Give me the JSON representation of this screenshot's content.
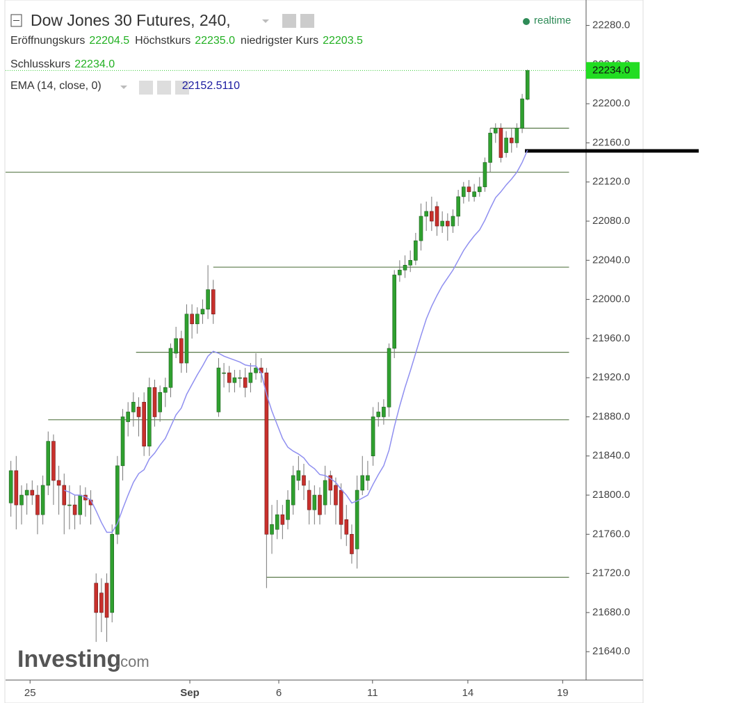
{
  "chart_data": {
    "type": "candlestick",
    "title": "Dow Jones 30 Futures, 240,",
    "status": "realtime",
    "ohlc": [
      {
        "name": "Eröffnungskurs",
        "value": "22204.5"
      },
      {
        "name": "Höchstkurs",
        "value": "22235.0"
      },
      {
        "name": "niedrigster Kurs",
        "value": "22203.5"
      },
      {
        "name": "Schlusskurs",
        "value": "22234.0"
      }
    ],
    "last_price_label": "22234.0",
    "ema_name": "EMA (14, close, 0)",
    "ema_label": "22152.5110",
    "ema_color": "#8f8ff0",
    "logo": [
      "Investing",
      ".com"
    ],
    "up_color": "#2fa02f",
    "down_color": "#c8302c",
    "ylim": [
      21611,
      22306
    ],
    "yticks": [
      {
        "value": 21640,
        "label": "21640.0"
      },
      {
        "value": 21680,
        "label": "21680.0"
      },
      {
        "value": 21720,
        "label": "21720.0"
      },
      {
        "value": 21760,
        "label": "21760.0"
      },
      {
        "value": 21800,
        "label": "21800.0"
      },
      {
        "value": 21840,
        "label": "21840.0"
      },
      {
        "value": 21880,
        "label": "21880.0"
      },
      {
        "value": 21920,
        "label": "21920.0"
      },
      {
        "value": 21960,
        "label": "21960.0"
      },
      {
        "value": 22000,
        "label": "22000.0"
      },
      {
        "value": 22040,
        "label": "22040.0"
      },
      {
        "value": 22080,
        "label": "22080.0"
      },
      {
        "value": 22120,
        "label": "22120.0"
      },
      {
        "value": 22160,
        "label": "22160.0"
      },
      {
        "value": 22200,
        "label": "22200.0"
      },
      {
        "value": 22240,
        "label": "22240.0"
      },
      {
        "value": 22280,
        "label": "22280.0"
      }
    ],
    "xlim": [
      -1,
      108
    ],
    "xticks": [
      {
        "value": 3.6,
        "label": "25"
      },
      {
        "value": 33.6,
        "label": "Sep"
      },
      {
        "value": 50.3,
        "label": "6"
      },
      {
        "value": 67.9,
        "label": "11"
      },
      {
        "value": 85.8,
        "label": "14"
      },
      {
        "value": 103.6,
        "label": "19"
      }
    ],
    "levels": [
      {
        "price": 22175,
        "from": 90,
        "to": 104.8
      },
      {
        "price": 22130,
        "from": -1,
        "to": 104.8
      },
      {
        "price": 22033,
        "from": 38,
        "to": 104.8
      },
      {
        "price": 21946,
        "from": 23.5,
        "to": 104.8
      },
      {
        "price": 21877,
        "from": 7,
        "to": 104.8
      },
      {
        "price": 21716,
        "from": 48,
        "to": 104.8
      }
    ],
    "level_color": "#5a7a4a",
    "x": [
      0,
      1,
      2,
      3,
      4,
      5,
      6,
      7,
      8,
      9,
      10,
      11,
      12,
      13,
      14,
      15,
      16,
      17,
      18,
      19,
      20,
      21,
      22,
      23,
      24,
      25,
      26,
      27,
      28,
      29,
      30,
      31,
      32,
      33,
      34,
      35,
      36,
      37,
      38,
      39,
      40,
      41,
      42,
      43,
      44,
      45,
      46,
      47,
      48,
      49,
      50,
      51,
      52,
      53,
      54,
      55,
      56,
      57,
      58,
      59,
      60,
      61,
      62,
      63,
      64,
      65,
      66,
      67,
      68,
      69,
      70,
      71,
      72,
      73,
      74,
      75,
      76,
      77,
      78,
      79,
      80,
      81,
      82,
      83,
      84,
      85,
      86,
      87,
      88,
      89,
      90,
      91,
      92,
      93,
      94,
      95,
      96,
      97
    ],
    "open": [
      21792,
      21825,
      21790,
      21800,
      21805,
      21800,
      21780,
      21810,
      21855,
      21815,
      21810,
      21790,
      21790,
      21780,
      21800,
      21795,
      21710,
      21700,
      21710,
      21680,
      21760,
      21830,
      21875,
      21885,
      21890,
      21895,
      21850,
      21910,
      21885,
      21905,
      21910,
      21945,
      21960,
      21935,
      21985,
      21975,
      21985,
      21990,
      22010,
      21885,
      21925,
      21925,
      21915,
      21920,
      21920,
      21915,
      21925,
      21930,
      21925,
      21760,
      21765,
      21780,
      21775,
      21790,
      21815,
      21820,
      21805,
      21785,
      21800,
      21790,
      21820,
      21810,
      21805,
      21775,
      21760,
      21745,
      21805,
      21815,
      21840,
      21880,
      21880,
      21890,
      21950,
      22025,
      22030,
      22035,
      22040,
      22060,
      22085,
      22090,
      22095,
      22075,
      22080,
      22075,
      22085,
      22105,
      22115,
      22105,
      22110,
      22115,
      22140,
      22170,
      22175,
      22150,
      22165,
      22160,
      22175,
      22204.5
    ],
    "high": [
      21835,
      21840,
      21810,
      21812,
      21815,
      21810,
      21820,
      21865,
      21862,
      21830,
      21822,
      21810,
      21800,
      21810,
      21808,
      21805,
      21720,
      21715,
      21720,
      21770,
      21840,
      21888,
      21895,
      21905,
      21900,
      21905,
      21920,
      21918,
      21912,
      21920,
      21955,
      21972,
      21968,
      21995,
      21995,
      21992,
      22000,
      22035,
      22020,
      21940,
      21935,
      21932,
      21928,
      21928,
      21930,
      21935,
      21945,
      21940,
      21930,
      21790,
      21795,
      21790,
      21805,
      21830,
      21840,
      21832,
      21815,
      21810,
      21808,
      21830,
      21825,
      21818,
      21812,
      21790,
      21770,
      21820,
      21840,
      21835,
      21890,
      21895,
      21898,
      21955,
      22030,
      22040,
      22045,
      22050,
      22068,
      22098,
      22100,
      22105,
      22100,
      22090,
      22088,
      22092,
      22112,
      22120,
      22122,
      22118,
      22125,
      22145,
      22175,
      22180,
      22180,
      22172,
      22175,
      22180,
      22210,
      22235
    ],
    "low": [
      21778,
      21765,
      21770,
      21780,
      21790,
      21760,
      21770,
      21800,
      21790,
      21780,
      21760,
      21765,
      21765,
      21770,
      21778,
      21770,
      21650,
      21660,
      21650,
      21670,
      21750,
      21815,
      21860,
      21870,
      21860,
      21840,
      21840,
      21870,
      21875,
      21890,
      21900,
      21940,
      21925,
      21925,
      21960,
      21965,
      21975,
      21980,
      21975,
      21880,
      21910,
      21905,
      21905,
      21910,
      21900,
      21905,
      21918,
      21915,
      21705,
      21740,
      21755,
      21755,
      21765,
      21780,
      21805,
      21795,
      21770,
      21770,
      21770,
      21780,
      21790,
      21770,
      21755,
      21748,
      21730,
      21725,
      21800,
      21805,
      21830,
      21870,
      21872,
      21880,
      21940,
      22018,
      22022,
      22028,
      22035,
      22050,
      22070,
      22070,
      22065,
      22068,
      22060,
      22068,
      22075,
      22098,
      22100,
      22100,
      22105,
      22110,
      22130,
      22160,
      22140,
      22145,
      22150,
      22155,
      22170,
      22203.5
    ],
    "close": [
      21825,
      21790,
      21800,
      21805,
      21800,
      21780,
      21810,
      21855,
      21815,
      21810,
      21790,
      21790,
      21780,
      21800,
      21795,
      21790,
      21680,
      21680,
      21675,
      21760,
      21830,
      21880,
      21885,
      21895,
      21880,
      21850,
      21910,
      21880,
      21905,
      21910,
      21950,
      21960,
      21935,
      21985,
      21975,
      21985,
      21990,
      22010,
      21985,
      21930,
      21925,
      21915,
      21920,
      21920,
      21910,
      21925,
      21930,
      21925,
      21760,
      21770,
      21780,
      21770,
      21795,
      21820,
      21825,
      21810,
      21785,
      21800,
      21780,
      21815,
      21805,
      21790,
      21770,
      21760,
      21740,
      21805,
      21820,
      21820,
      21880,
      21885,
      21890,
      21950,
      22025,
      22030,
      22035,
      22040,
      22060,
      22085,
      22090,
      22080,
      22075,
      22080,
      22075,
      22085,
      22105,
      22115,
      22110,
      22110,
      22115,
      22140,
      22170,
      22175,
      22145,
      22165,
      22160,
      22175,
      22205,
      22234
    ],
    "ema": [
      null,
      null,
      null,
      null,
      null,
      null,
      null,
      null,
      null,
      null,
      21805,
      21803,
      21800,
      21800,
      21798,
      21795,
      21784,
      21772,
      21762,
      21762,
      21771,
      21786,
      21800,
      21813,
      21822,
      21826,
      21837,
      21843,
      21851,
      21858,
      21870,
      21882,
      21889,
      21903,
      21913,
      21923,
      21932,
      21942,
      21947,
      21945,
      21942,
      21940,
      21938,
      21936,
      21933,
      21932,
      21932,
      21925,
      21903,
      21886,
      21872,
      21858,
      21849,
      21845,
      21842,
      21838,
      21831,
      21827,
      21821,
      21820,
      21817,
      21813,
      21806,
      21800,
      21792,
      21794,
      21797,
      21800,
      21811,
      21821,
      21830,
      21846,
      21870,
      21891,
      21910,
      21927,
      21945,
      21963,
      21980,
      21993,
      22004,
      22014,
      22022,
      22030,
      22040,
      22050,
      22058,
      22065,
      22071,
      22081,
      22093,
      22104,
      22110,
      22117,
      22123,
      22130,
      22140,
      22152.511
    ]
  }
}
